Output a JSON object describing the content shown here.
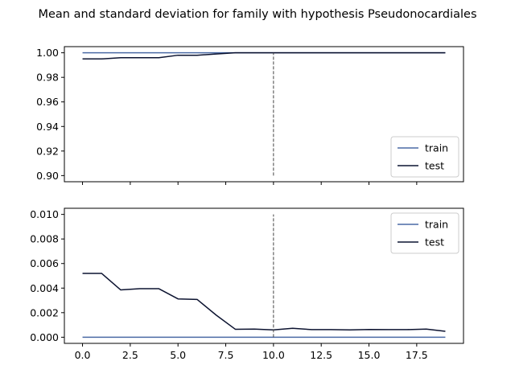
{
  "title": "Mean and standard deviation for family with hypothesis Pseudonocardiales",
  "colors": {
    "train": "#4a6aa5",
    "test": "#0c1330",
    "vline": "#444444",
    "axis": "#000000"
  },
  "chart_data": [
    {
      "type": "line",
      "panel": "mean",
      "x": [
        0,
        1,
        2,
        3,
        4,
        5,
        6,
        7,
        8,
        9,
        10,
        11,
        12,
        13,
        14,
        15,
        16,
        17,
        18,
        19
      ],
      "series": [
        {
          "name": "train",
          "values": [
            1.0,
            1.0,
            1.0,
            1.0,
            1.0,
            1.0,
            1.0,
            1.0,
            1.0,
            1.0,
            1.0,
            1.0,
            1.0,
            1.0,
            1.0,
            1.0,
            1.0,
            1.0,
            1.0,
            1.0
          ]
        },
        {
          "name": "test",
          "values": [
            0.995,
            0.995,
            0.996,
            0.996,
            0.996,
            0.998,
            0.998,
            0.999,
            1.0,
            1.0,
            1.0,
            1.0,
            1.0,
            1.0,
            1.0,
            1.0,
            1.0,
            1.0,
            1.0,
            1.0
          ]
        }
      ],
      "xlim": [
        -0.95,
        19.95
      ],
      "ylim": [
        0.895,
        1.005
      ],
      "yticks": [
        0.9,
        0.92,
        0.94,
        0.96,
        0.98,
        1.0
      ],
      "ytick_labels": [
        "0.90",
        "0.92",
        "0.94",
        "0.96",
        "0.98",
        "1.00"
      ],
      "xticks": [
        0,
        2.5,
        5,
        7.5,
        10,
        12.5,
        15,
        17.5
      ],
      "show_xtick_labels": false,
      "vline": {
        "x": 10,
        "y": [
          0.9,
          1.0
        ]
      },
      "legend": "lower right"
    },
    {
      "type": "line",
      "panel": "std",
      "x": [
        0,
        1,
        2,
        3,
        4,
        5,
        6,
        7,
        8,
        9,
        10,
        11,
        12,
        13,
        14,
        15,
        16,
        17,
        18,
        19
      ],
      "series": [
        {
          "name": "train",
          "values": [
            0,
            0,
            0,
            0,
            0,
            0,
            0,
            0,
            0,
            0,
            0,
            0,
            0,
            0,
            0,
            0,
            0,
            0,
            0,
            0
          ]
        },
        {
          "name": "test",
          "values": [
            0.0052,
            0.0052,
            0.00385,
            0.00395,
            0.00395,
            0.00312,
            0.00308,
            0.0018,
            0.00065,
            0.00066,
            0.0006,
            0.00073,
            0.00062,
            0.00062,
            0.0006,
            0.00063,
            0.00062,
            0.00062,
            0.00066,
            0.00048
          ]
        }
      ],
      "xlim": [
        -0.95,
        19.95
      ],
      "ylim": [
        -0.0005,
        0.0105
      ],
      "yticks": [
        0.0,
        0.002,
        0.004,
        0.006,
        0.008,
        0.01
      ],
      "ytick_labels": [
        "0.000",
        "0.002",
        "0.004",
        "0.006",
        "0.008",
        "0.010"
      ],
      "xticks": [
        0,
        2.5,
        5,
        7.5,
        10,
        12.5,
        15,
        17.5
      ],
      "xtick_labels": [
        "0.0",
        "2.5",
        "5.0",
        "7.5",
        "10.0",
        "12.5",
        "15.0",
        "17.5"
      ],
      "show_xtick_labels": true,
      "vline": {
        "x": 10,
        "y": [
          0.0,
          0.01
        ]
      },
      "legend": "upper right"
    }
  ]
}
